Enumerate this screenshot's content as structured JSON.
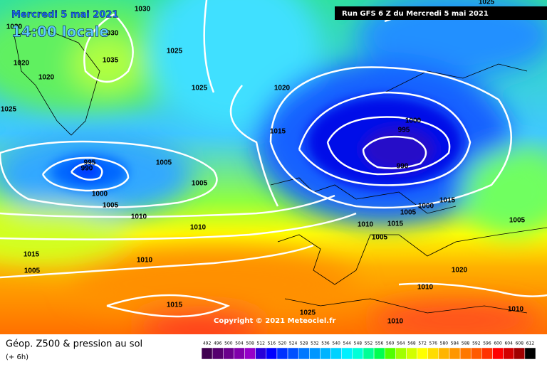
{
  "header": {
    "date": "Mercredi 5 mai 2021",
    "time": "14:00 locale",
    "run": "Run GFS 6 Z du Mercredi 5 mai 2021"
  },
  "isobar_labels": [
    "1025",
    "1030",
    "1030",
    "030",
    "1025",
    "1035",
    "1020",
    "1020",
    "1025",
    "1020",
    "1025",
    "1015",
    "1000",
    "995",
    "990",
    "995",
    "990",
    "1005",
    "1005",
    "1000",
    "1005",
    "1010",
    "1015",
    "1000",
    "1005",
    "1010",
    "1015",
    "1005",
    "1005",
    "1015",
    "1005",
    "1010",
    "1020",
    "1010",
    "1015",
    "1025",
    "1010",
    "1010",
    "1010"
  ],
  "copyright": "Copyright © 2021 Meteociel.fr",
  "footer": {
    "title": "Géop. Z500 & pression au sol",
    "subtitle": "(+ 6h)"
  },
  "scale": {
    "labels": [
      "492",
      "496",
      "500",
      "504",
      "508",
      "512",
      "516",
      "520",
      "524",
      "528",
      "532",
      "536",
      "540",
      "544",
      "548",
      "552",
      "556",
      "560",
      "564",
      "568",
      "572",
      "576",
      "580",
      "584",
      "588",
      "592",
      "596",
      "600",
      "604",
      "608",
      "612"
    ],
    "colors": [
      "#400050",
      "#55006e",
      "#6a008c",
      "#8000aa",
      "#9600c8",
      "#2800d8",
      "#0000ff",
      "#0032ff",
      "#0050ff",
      "#0078ff",
      "#0096ff",
      "#00b4ff",
      "#00d2ff",
      "#00f0ff",
      "#00ffd8",
      "#00ff96",
      "#00ff50",
      "#50ff00",
      "#a0ff00",
      "#d2ff00",
      "#ffff00",
      "#ffdc00",
      "#ffb400",
      "#ff9600",
      "#ff7800",
      "#ff5a00",
      "#ff3200",
      "#ff0000",
      "#d20000",
      "#a00000",
      "#000000"
    ]
  }
}
